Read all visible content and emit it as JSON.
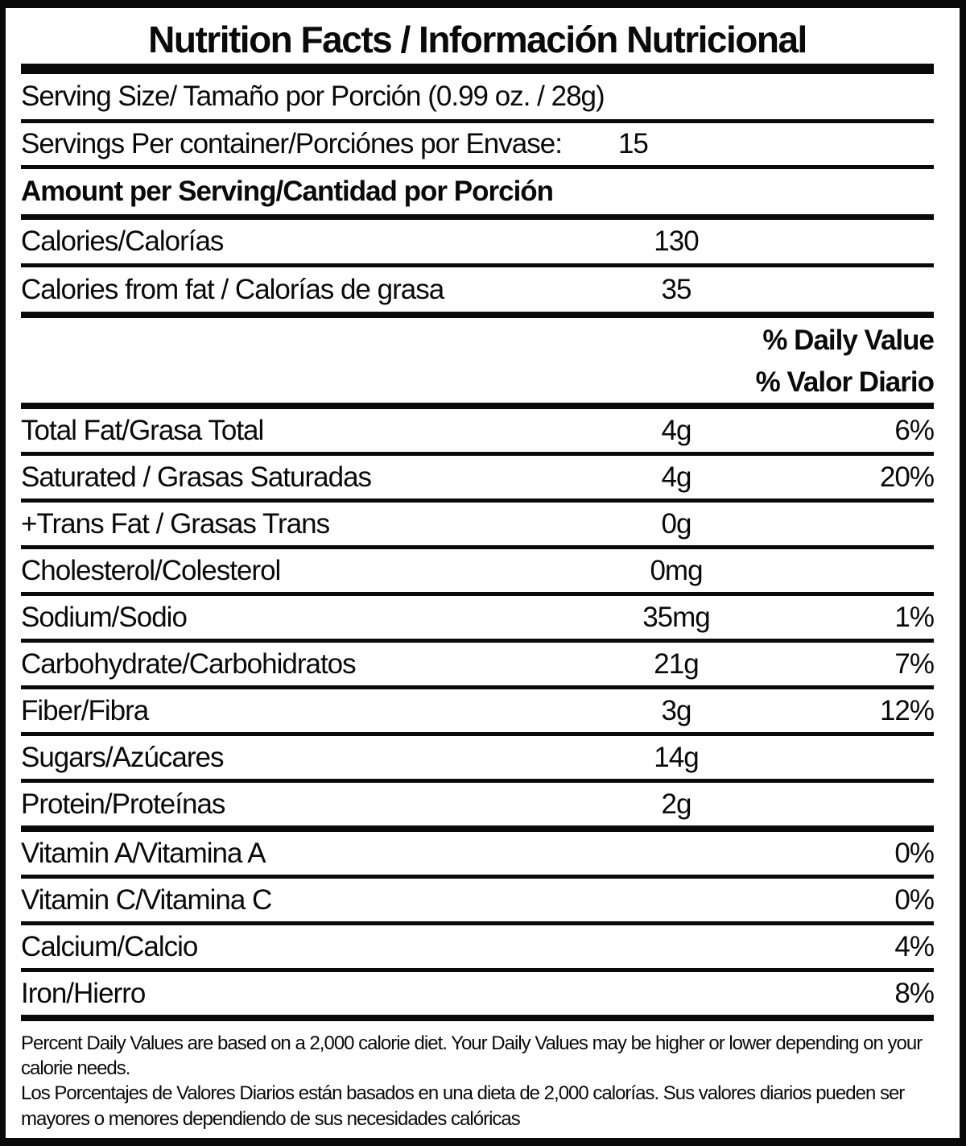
{
  "colors": {
    "text": "#0a0a0a",
    "background": "#ffffff",
    "rule": "#0a0a0a"
  },
  "label": {
    "title": "Nutrition Facts / Información Nutricional",
    "serving_size": {
      "label": "Serving Size/ Tamaño por Porción  (0.99 oz. / 28g)"
    },
    "servings_per_container": {
      "label": "Servings Per container/Porciónes por Envase:",
      "value": "15"
    },
    "amount_per_serving_heading": "Amount per Serving/Cantidad por Porción",
    "calories": {
      "label": "Calories/Calorías",
      "value": "130"
    },
    "calories_from_fat": {
      "label": "Calories from fat / Calorías de grasa",
      "value": "35"
    },
    "daily_value_heading_en": "% Daily Value",
    "daily_value_heading_es": "% Valor Diario",
    "nutrients": [
      {
        "label": "Total Fat/Grasa Total",
        "amount": "4g",
        "dv": "6%"
      },
      {
        "label": "Saturated / Grasas Saturadas",
        "amount": "4g",
        "dv": "20%"
      },
      {
        "label": "+Trans Fat / Grasas Trans",
        "amount": "0g",
        "dv": ""
      },
      {
        "label": "Cholesterol/Colesterol",
        "amount": "0mg",
        "dv": ""
      },
      {
        "label": "Sodium/Sodio",
        "amount": "35mg",
        "dv": "1%"
      },
      {
        "label": "Carbohydrate/Carbohidratos",
        "amount": "21g",
        "dv": "7%"
      },
      {
        "label": "Fiber/Fibra",
        "amount": "3g",
        "dv": "12%"
      },
      {
        "label": "Sugars/Azúcares",
        "amount": "14g",
        "dv": ""
      },
      {
        "label": "Protein/Proteínas",
        "amount": "2g",
        "dv": ""
      },
      {
        "label": "Vitamin A/Vitamina A",
        "amount": "",
        "dv": "0%"
      },
      {
        "label": "Vitamin C/Vitamina C",
        "amount": "",
        "dv": "0%"
      },
      {
        "label": "Calcium/Calcio",
        "amount": "",
        "dv": "4%"
      },
      {
        "label": "Iron/Hierro",
        "amount": "",
        "dv": "8%"
      }
    ],
    "footnote_en": "Percent Daily Values are based on a 2,000 calorie diet. Your Daily Values may be higher or lower depending on your calorie needs.",
    "footnote_es": "Los Porcentajes de Valores Diarios están basados en una dieta de 2,000 calorías. Sus valores diarios pueden ser mayores o menores dependiendo de sus necesidades calóricas"
  }
}
